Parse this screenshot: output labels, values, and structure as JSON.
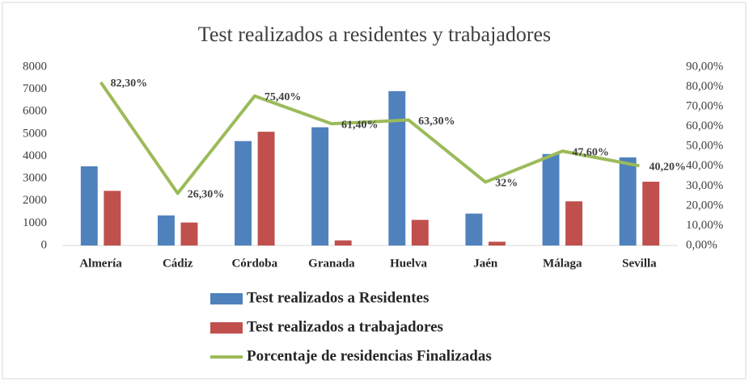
{
  "chart_data": {
    "type": "bar",
    "title": "Test realizados a residentes y trabajadores",
    "categories": [
      "Almería",
      "Cádiz",
      "Córdoba",
      "Granada",
      "Huelva",
      "Jaén",
      "Málaga",
      "Sevilla"
    ],
    "series": [
      {
        "name": "Test realizados a Residentes",
        "type": "bar",
        "color": "#4f81bd",
        "values": [
          3550,
          1350,
          4680,
          5300,
          6920,
          1430,
          4100,
          3950
        ]
      },
      {
        "name": "Test realizados a trabajadores",
        "type": "bar",
        "color": "#c0504d",
        "values": [
          2450,
          1030,
          5100,
          230,
          1150,
          170,
          1980,
          2860
        ]
      },
      {
        "name": "Porcentaje de residencias Finalizadas",
        "type": "line",
        "axis": "y2",
        "color": "#9bbb59",
        "values": [
          82.3,
          26.3,
          75.4,
          61.4,
          63.3,
          32,
          47.6,
          40.2
        ],
        "value_labels": [
          "82,30%",
          "26,30%",
          "75,40%",
          "61,40%",
          "63,30%",
          "32%",
          "47,60%",
          "40,20%"
        ]
      }
    ],
    "ylim": [
      0,
      8000
    ],
    "yticks": [
      0,
      1000,
      2000,
      3000,
      4000,
      5000,
      6000,
      7000,
      8000
    ],
    "y2lim": [
      0,
      90
    ],
    "y2ticks": [
      {
        "value": 0,
        "label": "0,00%"
      },
      {
        "value": 10,
        "label": "10,00%"
      },
      {
        "value": 20,
        "label": "20,00%"
      },
      {
        "value": 30,
        "label": "30,00%"
      },
      {
        "value": 40,
        "label": "40,00%"
      },
      {
        "value": 50,
        "label": "50,00%"
      },
      {
        "value": 60,
        "label": "60,00%"
      },
      {
        "value": 70,
        "label": "70,00%"
      },
      {
        "value": 80,
        "label": "80,00%"
      },
      {
        "value": 90,
        "label": "90,00%"
      }
    ],
    "legend": "bottom"
  }
}
